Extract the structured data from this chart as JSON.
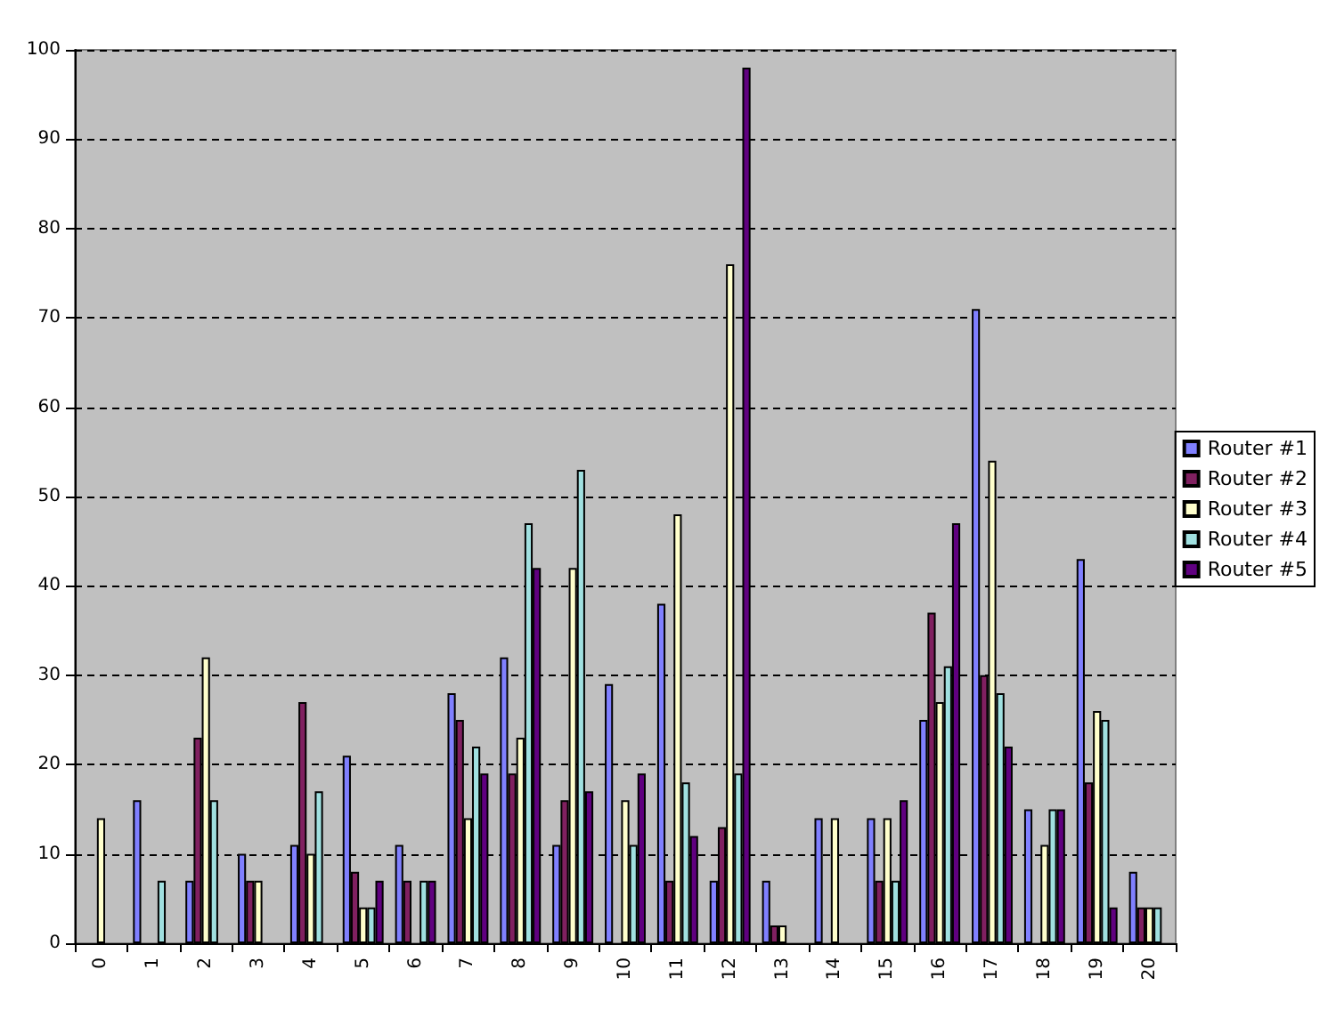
{
  "chart_data": {
    "type": "bar",
    "categories": [
      "0",
      "1",
      "2",
      "3",
      "4",
      "5",
      "6",
      "7",
      "8",
      "9",
      "10",
      "11",
      "12",
      "13",
      "14",
      "15",
      "16",
      "17",
      "18",
      "19",
      "20"
    ],
    "series": [
      {
        "name": "Router #1",
        "color": "#8080ff",
        "values": [
          0,
          16,
          7,
          10,
          11,
          21,
          11,
          28,
          32,
          11,
          29,
          38,
          7,
          7,
          14,
          14,
          25,
          71,
          15,
          43,
          8
        ]
      },
      {
        "name": "Router #2",
        "color": "#802060",
        "values": [
          0,
          0,
          23,
          7,
          27,
          8,
          7,
          25,
          19,
          16,
          0,
          7,
          13,
          2,
          0,
          7,
          37,
          30,
          0,
          18,
          4
        ]
      },
      {
        "name": "Router #3",
        "color": "#ffffcc",
        "values": [
          14,
          0,
          32,
          7,
          10,
          4,
          0,
          14,
          23,
          42,
          16,
          48,
          76,
          2,
          14,
          14,
          27,
          54,
          11,
          26,
          4
        ]
      },
      {
        "name": "Router #4",
        "color": "#a0e0e0",
        "values": [
          0,
          7,
          16,
          0,
          17,
          4,
          7,
          22,
          47,
          53,
          11,
          18,
          19,
          0,
          0,
          7,
          31,
          28,
          15,
          25,
          4
        ]
      },
      {
        "name": "Router #5",
        "color": "#600080",
        "values": [
          0,
          0,
          0,
          0,
          0,
          7,
          7,
          19,
          42,
          17,
          19,
          12,
          98,
          0,
          0,
          16,
          47,
          22,
          15,
          4,
          0
        ]
      }
    ],
    "ylim": [
      0,
      100
    ],
    "yticks": [
      0,
      10,
      20,
      30,
      40,
      50,
      60,
      70,
      80,
      90,
      100
    ],
    "grid": "y",
    "legend": "right"
  }
}
